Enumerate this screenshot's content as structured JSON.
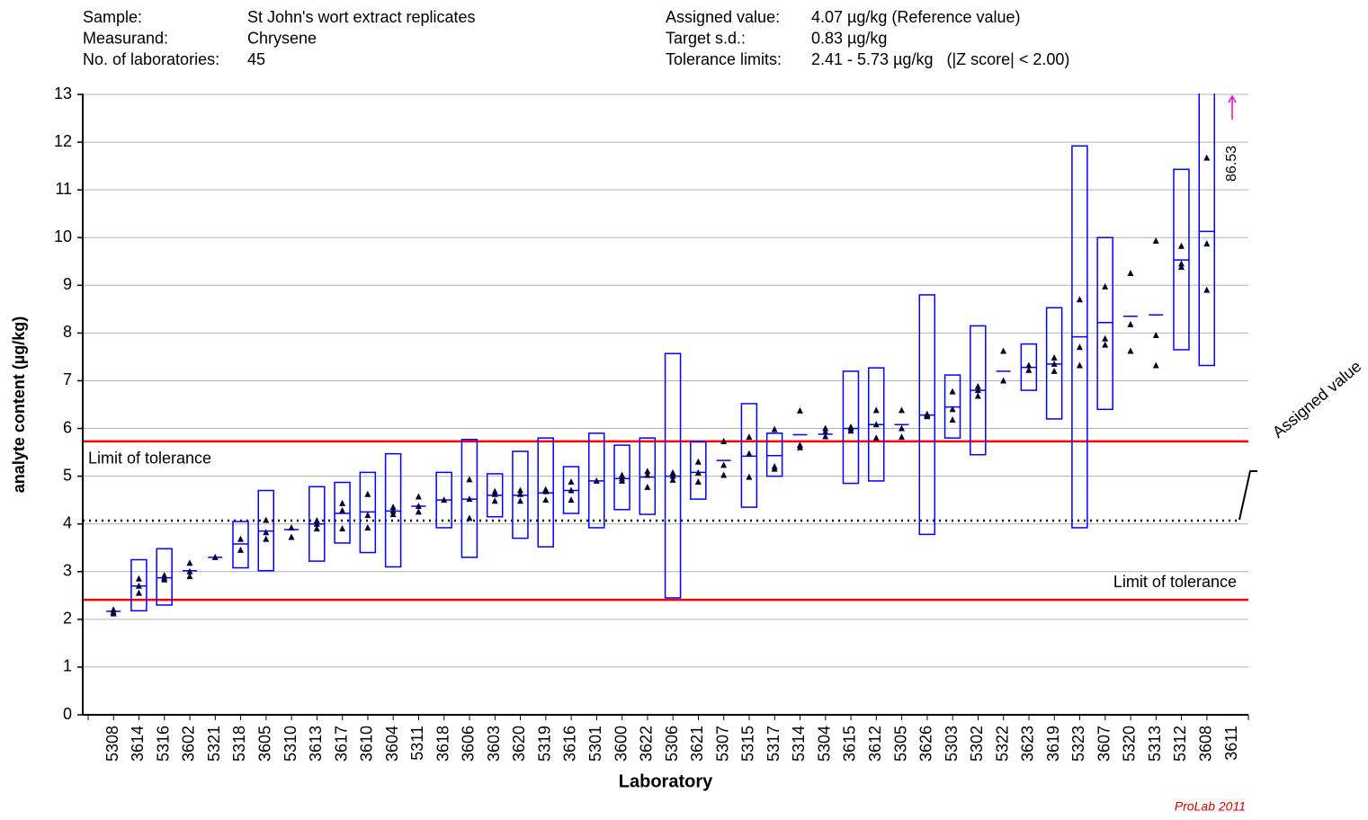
{
  "chart_data": {
    "type": "range",
    "header_left": [
      [
        "Sample:",
        "St John's wort extract replicates"
      ],
      [
        "Measurand:",
        "Chrysene"
      ],
      [
        "No. of laboratories:",
        "45"
      ]
    ],
    "header_right": [
      [
        "Assigned value:",
        "4.07 µg/kg (Reference value)"
      ],
      [
        "Target s.d.:",
        "0.83 µg/kg"
      ],
      [
        "Tolerance limits:",
        "2.41 - 5.73 µg/kg   (|Z score| < 2.00)"
      ]
    ],
    "x_label": "Laboratory",
    "y_label": "analyte content (µg/kg)",
    "footer": "ProLab 2011",
    "limit_label": "Limit of tolerance",
    "assigned_label": "Assigned value",
    "assigned_value": 4.07,
    "tolerance_limits": [
      2.41,
      5.73
    ],
    "ylim": [
      0,
      13
    ],
    "yticks": [
      0,
      1,
      2,
      3,
      4,
      5,
      6,
      7,
      8,
      9,
      10,
      11,
      12,
      13
    ],
    "grid": true,
    "box_color": "#0000ff",
    "marker_color": "#000033",
    "limit_color": "#ff0000",
    "arrow_color": "#ff00cc",
    "categories": [
      "5308",
      "3614",
      "5316",
      "3602",
      "5321",
      "5318",
      "3605",
      "5310",
      "3613",
      "3617",
      "3610",
      "3604",
      "5311",
      "3618",
      "3606",
      "3603",
      "3620",
      "5319",
      "3616",
      "5301",
      "3600",
      "3622",
      "5306",
      "3621",
      "5307",
      "5315",
      "5317",
      "5314",
      "5304",
      "3615",
      "3612",
      "5305",
      "3626",
      "5303",
      "5302",
      "5322",
      "3623",
      "3619",
      "5323",
      "3607",
      "5320",
      "5313",
      "5312",
      "3608",
      "3611"
    ],
    "means": [
      2.17,
      2.7,
      2.87,
      3.02,
      3.3,
      3.58,
      3.85,
      3.88,
      4.0,
      4.22,
      4.25,
      4.27,
      4.37,
      4.5,
      4.52,
      4.6,
      4.6,
      4.65,
      4.7,
      4.9,
      4.95,
      4.98,
      5.0,
      5.08,
      5.33,
      5.42,
      5.43,
      5.87,
      5.88,
      6.0,
      6.08,
      6.08,
      6.28,
      6.45,
      6.8,
      7.2,
      7.28,
      7.35,
      7.92,
      8.22,
      8.35,
      8.38,
      9.53,
      10.13,
      86.53
    ],
    "box_low": [
      null,
      2.18,
      2.3,
      null,
      null,
      3.08,
      3.02,
      null,
      3.22,
      3.6,
      3.4,
      3.1,
      null,
      3.92,
      3.3,
      4.15,
      3.7,
      3.52,
      4.22,
      3.92,
      4.3,
      4.2,
      2.45,
      4.52,
      null,
      4.35,
      5.0,
      null,
      null,
      4.85,
      4.9,
      null,
      3.78,
      5.8,
      5.45,
      null,
      6.8,
      6.2,
      3.92,
      6.4,
      null,
      null,
      7.65,
      7.32,
      null
    ],
    "box_high": [
      null,
      3.25,
      3.48,
      null,
      null,
      4.05,
      4.7,
      null,
      4.78,
      4.87,
      5.08,
      5.47,
      null,
      5.08,
      5.77,
      5.05,
      5.52,
      5.8,
      5.2,
      5.9,
      5.65,
      5.8,
      7.57,
      5.72,
      null,
      6.52,
      5.9,
      null,
      null,
      7.2,
      7.27,
      null,
      8.8,
      7.12,
      8.15,
      null,
      7.77,
      8.53,
      11.92,
      10.0,
      null,
      null,
      11.43,
      13.2,
      null
    ],
    "replicates": [
      [
        2.2,
        2.15,
        2.12
      ],
      [
        2.85,
        2.7,
        2.55
      ],
      [
        2.92,
        2.87,
        2.83
      ],
      [
        3.18,
        3.0,
        2.9
      ],
      [
        3.3
      ],
      [
        3.68,
        3.45
      ],
      [
        4.08,
        3.82,
        3.68
      ],
      [
        3.92,
        3.72
      ],
      [
        4.07,
        4.0,
        3.9
      ],
      [
        4.43,
        4.28,
        3.9
      ],
      [
        4.62,
        4.18,
        3.92
      ],
      [
        4.35,
        4.27,
        4.2
      ],
      [
        4.57,
        4.37,
        4.25
      ],
      [
        4.5
      ],
      [
        4.93,
        4.52,
        4.12
      ],
      [
        4.68,
        4.62,
        4.48
      ],
      [
        4.7,
        4.62,
        4.48
      ],
      [
        4.72,
        4.68,
        4.5
      ],
      [
        4.88,
        4.7,
        4.5
      ],
      [
        4.9
      ],
      [
        5.02,
        4.95,
        4.9
      ],
      [
        5.1,
        5.02,
        4.77
      ],
      [
        5.07,
        5.0,
        4.92
      ],
      [
        5.3,
        5.07,
        4.88
      ],
      [
        5.73,
        5.23,
        5.02
      ],
      [
        5.82,
        5.47,
        4.98
      ],
      [
        5.98,
        5.2,
        5.15
      ],
      [
        6.37,
        5.65,
        5.6
      ],
      [
        6.0,
        5.93,
        5.83
      ],
      [
        6.03,
        6.0,
        5.95
      ],
      [
        6.38,
        6.08,
        5.8
      ],
      [
        6.38,
        6.0,
        5.82
      ],
      [
        6.3,
        6.28,
        6.25
      ],
      [
        6.77,
        6.4,
        6.18
      ],
      [
        6.88,
        6.8,
        6.68
      ],
      [
        7.62,
        7.0
      ],
      [
        7.32,
        7.22
      ],
      [
        7.48,
        7.35,
        7.2
      ],
      [
        8.7,
        7.7,
        7.32
      ],
      [
        8.97,
        7.88,
        7.75
      ],
      [
        9.25,
        8.18,
        7.62
      ],
      [
        9.93,
        7.95,
        7.32
      ],
      [
        9.82,
        9.45,
        9.38
      ],
      [
        11.67,
        9.87,
        8.9
      ],
      []
    ]
  }
}
